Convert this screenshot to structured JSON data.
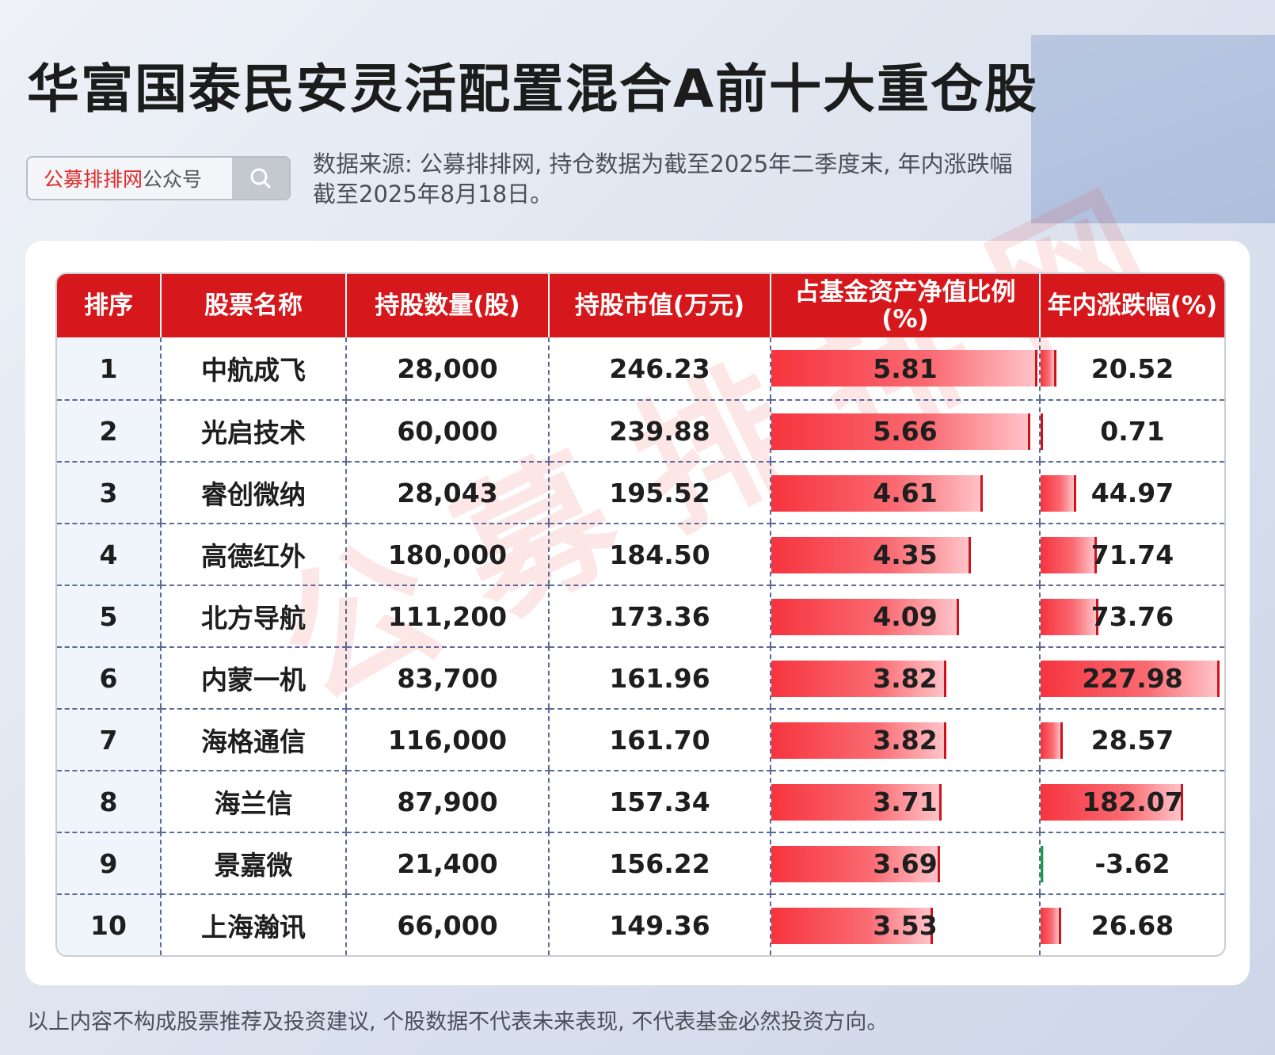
{
  "title": "华富国泰民安灵活配置混合A前十大重仓股",
  "search": {
    "brand": "公募排排网",
    "suffix": "公众号",
    "icon": "search-icon"
  },
  "source_note": "数据来源: 公募排排网, 持仓数据为截至2025年二季度末, 年内涨跌幅截至2025年8月18日。",
  "watermark": "公募排排网",
  "table": {
    "headers": [
      "排序",
      "股票名称",
      "持股数量(股)",
      "持股市值(万元)",
      "占基金资产净值比例(%)",
      "年内涨跌幅(%)"
    ],
    "rows": [
      {
        "rank": "1",
        "name": "中航成飞",
        "shares": "28,000",
        "value": "246.23",
        "ratio": "5.81",
        "change": "20.52"
      },
      {
        "rank": "2",
        "name": "光启技术",
        "shares": "60,000",
        "value": "239.88",
        "ratio": "5.66",
        "change": "0.71"
      },
      {
        "rank": "3",
        "name": "睿创微纳",
        "shares": "28,043",
        "value": "195.52",
        "ratio": "4.61",
        "change": "44.97"
      },
      {
        "rank": "4",
        "name": "高德红外",
        "shares": "180,000",
        "value": "184.50",
        "ratio": "4.35",
        "change": "71.74"
      },
      {
        "rank": "5",
        "name": "北方导航",
        "shares": "111,200",
        "value": "173.36",
        "ratio": "4.09",
        "change": "73.76"
      },
      {
        "rank": "6",
        "name": "内蒙一机",
        "shares": "83,700",
        "value": "161.96",
        "ratio": "3.82",
        "change": "227.98"
      },
      {
        "rank": "7",
        "name": "海格通信",
        "shares": "116,000",
        "value": "161.70",
        "ratio": "3.82",
        "change": "28.57"
      },
      {
        "rank": "8",
        "name": "海兰信",
        "shares": "87,900",
        "value": "157.34",
        "ratio": "3.71",
        "change": "182.07"
      },
      {
        "rank": "9",
        "name": "景嘉微",
        "shares": "21,400",
        "value": "156.22",
        "ratio": "3.69",
        "change": "-3.62"
      },
      {
        "rank": "10",
        "name": "上海瀚讯",
        "shares": "66,000",
        "value": "149.36",
        "ratio": "3.53",
        "change": "26.68"
      }
    ]
  },
  "footer_note": "以上内容不构成股票推荐及投资建议, 个股数据不代表未来表现, 不代表基金必然投资方向。",
  "colors": {
    "header_red": "#d6181c",
    "bar_red": "#f6343e",
    "negative_green": "#1e9a4c"
  }
}
